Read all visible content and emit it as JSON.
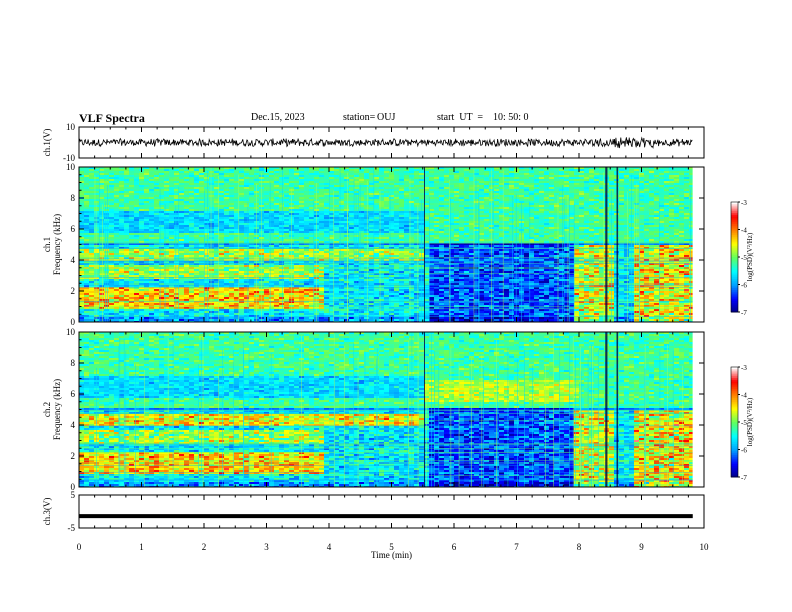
{
  "header": {
    "title": "VLF Spectra",
    "date": "Dec.15, 2023",
    "station_label": "station=",
    "station": "OUJ",
    "start_label": "start  UT  =",
    "start_time": "10: 50: 0"
  },
  "chart_data": [
    {
      "type": "line",
      "panel": "ch1-waveform",
      "ylabel": "ch.1(V)",
      "ylim": [
        -10,
        10
      ],
      "y_ticks": [
        "10",
        "-10"
      ],
      "trace_color": "#000000",
      "description_level": "noise around 0 V, amplitude about 2 V"
    },
    {
      "type": "heatmap",
      "panel": "ch1-spectrogram",
      "side_label": "ch.1",
      "ylabel": "Frequency (kHz)",
      "ylim": [
        0,
        10
      ],
      "y_ticks": [
        "0",
        "2",
        "4",
        "6",
        "8",
        "10"
      ],
      "colorbar": {
        "label": "log(PSD)(V²/Hz)",
        "range": [
          -7,
          -3
        ],
        "ticks": [
          "-3",
          "-4",
          "-5",
          "-6",
          "-7"
        ],
        "colormap": [
          "#000080",
          "#0000ff",
          "#00a0ff",
          "#00ffff",
          "#60ff60",
          "#ffff00",
          "#ff8000",
          "#ff0000",
          "#ffffff"
        ]
      }
    },
    {
      "type": "heatmap",
      "panel": "ch2-spectrogram",
      "side_label": "ch.2",
      "ylabel": "Frequency (kHz)",
      "ylim": [
        0,
        10
      ],
      "y_ticks": [
        "0",
        "2",
        "4",
        "6",
        "8",
        "10"
      ],
      "colorbar": {
        "label": "log(PSD)(V²/Hz)",
        "range": [
          -7,
          -3
        ],
        "ticks": [
          "-3",
          "-4",
          "-5",
          "-6",
          "-7"
        ],
        "colormap": [
          "#000080",
          "#0000ff",
          "#00a0ff",
          "#00ffff",
          "#60ff60",
          "#ffff00",
          "#ff8000",
          "#ff0000",
          "#ffffff"
        ]
      }
    },
    {
      "type": "line",
      "panel": "ch3-waveform",
      "ylabel": "ch.3(V)",
      "ylim": [
        -5,
        5
      ],
      "y_ticks": [
        "5",
        "-5"
      ],
      "y": -1.4,
      "trace_color": "#000000"
    }
  ],
  "xaxis": {
    "label": "Time  (min)",
    "range": [
      0,
      10
    ],
    "ticks": [
      "0",
      "1",
      "2",
      "3",
      "4",
      "5",
      "6",
      "7",
      "8",
      "9",
      "10"
    ],
    "data_end": 9.82
  }
}
